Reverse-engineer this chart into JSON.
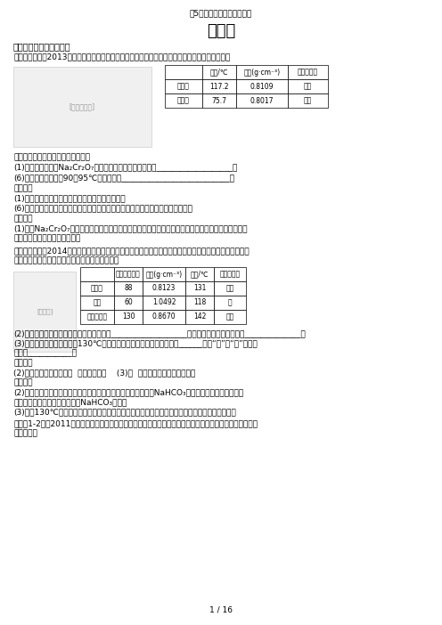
{
  "page_title": "近5年全国卷化学实验题总结",
  "main_title": "实验题",
  "section1_title": "一、实验步骤的正确与否",
  "exp1_header": "《实验题一》（2013年全国甲卷）正丁醇是一种化工原料。某实验小组利用如下装置合成正丁醚。",
  "table1_h0": "",
  "table1_h1": "沸点/℃",
  "table1_h2": "密度(g·cm⁻³)",
  "table1_h3": "水中溶解性",
  "table1_r1c0": "正丁醇",
  "table1_r1c1": "117.2",
  "table1_r1c2": "0.8109",
  "table1_r1c3": "微溶",
  "table1_r2c0": "正丁醚",
  "table1_r2c1": "75.7",
  "table1_r2c2": "0.8017",
  "table1_r2c3": "微溶",
  "text_after_table1": "反应物和产物的相关数据列表如下：",
  "q1_1": "(1)实验中，能否将Na₂Cr₂O₇溶液加到浓硫酸中，说明理由___________________。",
  "q1_6": "(6)反应温度应保持在90～95℃，其原因是___________________________。",
  "ans1_header": "《答案》",
  "ans1_1": "(1)不能，浓硫酸溶于水会放出大量热，易造成进溅",
  "ans1_6": "(6)既可保证正丁醚及时蕳出，又可尽量避免其被进一步氧化，同时避免正丁醇蕳出",
  "anal1_header": "《题析》",
  "anal1_line1": "(1)若将Na₂Cr₂O₇溶液加到浓硫酸中，由于水的密度小于浓硫酸的密度，浓硫酸释放出大量的热，会使",
  "anal1_line2": "上层的水沸腾，易使溶液溅出；",
  "exp4_line1": "《实验题四》（2014年全国乙卷）乙酸异戊酯是组成蜜蜂信息素的成分之一，具有香蕉的香味。实验室制备",
  "exp4_line2": "乙酸异戊酯的反应、装置示意图和有关数据如下：",
  "table2_h0": "",
  "table2_h1": "相对分子质量",
  "table2_h2": "密度(g·cm⁻³)",
  "table2_h3": "沸点/℃",
  "table2_h4": "水中溶解性",
  "table2_r1c0": "异戊醇",
  "table2_r1c1": "88",
  "table2_r1c2": "0.8123",
  "table2_r1c3": "131",
  "table2_r1c4": "微溶",
  "table2_r2c0": "乙酸",
  "table2_r2c1": "60",
  "table2_r2c2": "1.0492",
  "table2_r2c3": "118",
  "table2_r2c4": "溶",
  "table2_r3c0": "乙酸异戊酯",
  "table2_r3c1": "130",
  "table2_r3c2": "0.8670",
  "table2_r3c3": "142",
  "table2_r3c4": "难溶",
  "q4_2a": "(2)在洗浤操作中，第一次水洗的主要目的是___________________，第二次水洗的主要目的是______________；",
  "q4_3a": "(3)在进行蔓馏操作时，若从130℃便开始收集馏分，会使实验的产率偏______（填“高”或“低”），其",
  "q4_3b": "原因是___________。",
  "ans4_header": "《答案》",
  "ans4_23": "(2)洗掉大部分硫酸和醋酸  洗掉碳酸氢钓    (3)高  会收集少量未反应的异戊醇",
  "anal4_header": "《题析》",
  "anal4_line1": "(2)第一次水洗是除去作催化剂的硫酸和过量的醋酸，然后用饱和NaHCO₃溶液进一步除去少量乙酸，",
  "anal4_line2": "第二次水洗是为了除去过量饱和NaHCO₃溶液。",
  "anal4_line3": "(3)若从130℃开始收集馏分，收集得到乙酸异戊酯和少量未反应的异戊醇，使测得实验产率偏高。",
  "ex12_line1": "《练习1-2》（2011年全国课标）氢化钓固体是登山运动员常用的能源提供剂。某兴趣小组拟选用如下装置制",
  "ex12_line2": "备氢化钓。",
  "footer": "1 / 16"
}
